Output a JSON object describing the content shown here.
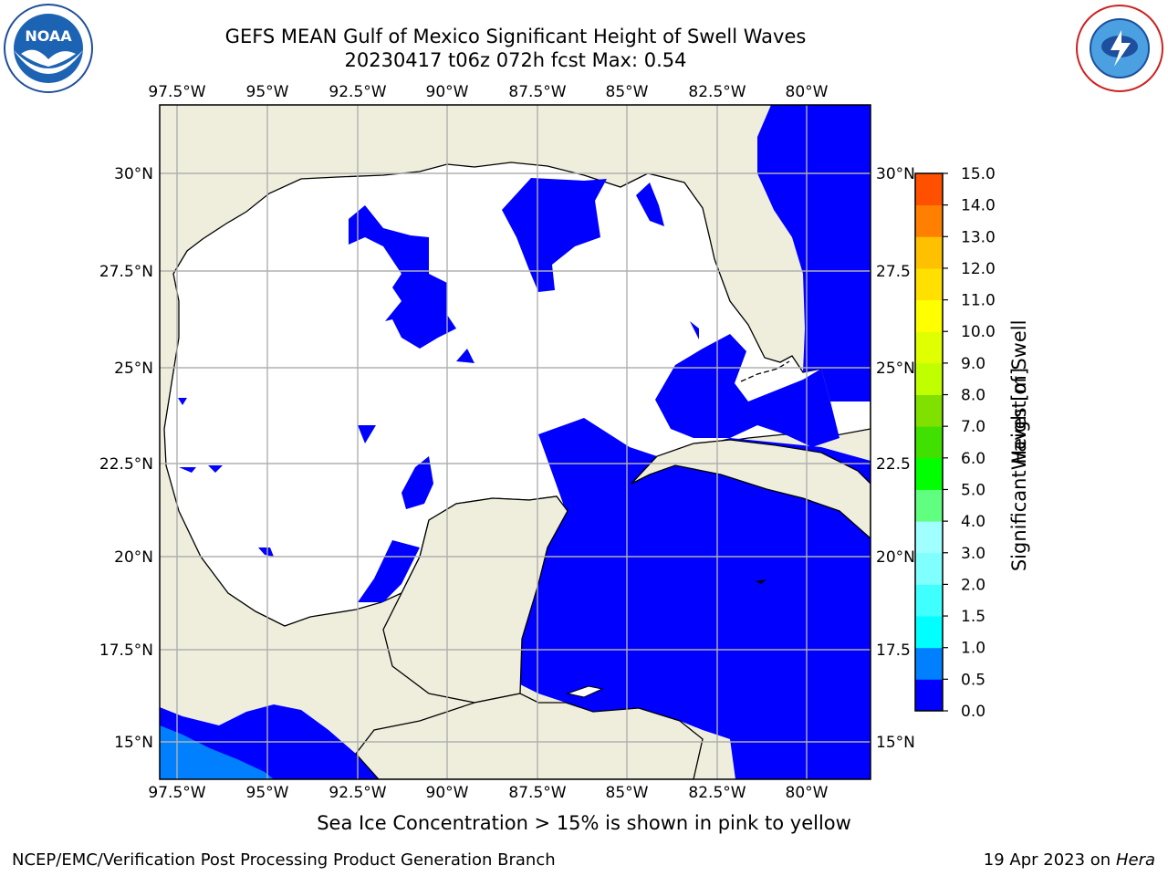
{
  "title": {
    "line1": "GEFS MEAN Gulf of Mexico Significant Height of Swell Waves",
    "line2": "20230417 t06z 072h fcst   Max: 0.54"
  },
  "logos": {
    "left": {
      "icon": "noaa-logo",
      "text": "NOAA"
    },
    "right": {
      "icon": "nws-logo"
    }
  },
  "map": {
    "lon_ticks": [
      "97.5°W",
      "95°W",
      "92.5°W",
      "90°W",
      "87.5°W",
      "85°W",
      "82.5°W",
      "80°W"
    ],
    "lat_ticks_left": [
      "30°N",
      "27.5°N",
      "25°N",
      "22.5°N",
      "20°N",
      "17.5°N",
      "15°N"
    ],
    "lat_ticks_right": [
      "30°N",
      "27.5",
      "25°N",
      "22.5",
      "20°N",
      "17.5",
      "15°N"
    ],
    "colors": {
      "land": "#efeedd",
      "swell_0_0.5": "#0000ff",
      "swell_0.5_1.0": "#0080ff",
      "grid": "#b0b0b0"
    }
  },
  "colorbar": {
    "label": "Significant Height of Swell Waves [m]",
    "ticks": [
      "0.0",
      "0.5",
      "1.0",
      "1.5",
      "2.0",
      "3.0",
      "4.0",
      "5.0",
      "6.0",
      "7.0",
      "8.0",
      "9.0",
      "10.0",
      "11.0",
      "12.0",
      "13.0",
      "14.0",
      "15.0"
    ],
    "colors": [
      "#0000ff",
      "#0080ff",
      "#00ffff",
      "#40ffff",
      "#80ffff",
      "#a0ffff",
      "#60ff80",
      "#00ff00",
      "#40e000",
      "#80e000",
      "#c0ff00",
      "#e0ff00",
      "#ffff00",
      "#ffe000",
      "#ffc000",
      "#ff8000",
      "#ff5000",
      "#ff2000",
      "#ff0000"
    ]
  },
  "note": "Sea Ice Concentration > 15% is shown in pink to yellow",
  "footer": {
    "left": "NCEP/EMC/Verification Post Processing Product Generation Branch",
    "right_date": "19 Apr 2023 on ",
    "right_host": "Hera"
  }
}
